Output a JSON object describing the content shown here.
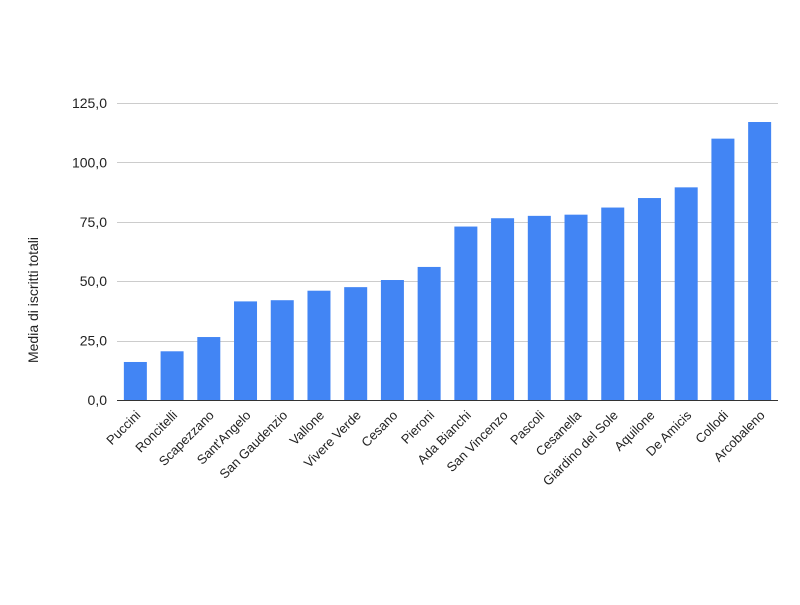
{
  "chart_data": {
    "type": "bar",
    "title": "",
    "xlabel": "",
    "ylabel": "Media di iscritti totali",
    "ylim": [
      0,
      125
    ],
    "yticks": [
      "0,0",
      "25,0",
      "50,0",
      "75,0",
      "100,0",
      "125,0"
    ],
    "ytick_values": [
      0,
      25,
      50,
      75,
      100,
      125
    ],
    "grid": true,
    "legend": "none",
    "bar_color": "#4285f4",
    "categories": [
      "Puccini",
      "Roncitelli",
      "Scapezzano",
      "Sant'Angelo",
      "San Gaudenzio",
      "Vallone",
      "Vivere Verde",
      "Cesano",
      "Pieroni",
      "Ada Bianchi",
      "San Vincenzo",
      "Pascoli",
      "Cesanella",
      "Giardino del Sole",
      "Aquilone",
      "De Amicis",
      "Collodi",
      "Arcobaleno"
    ],
    "values": [
      16,
      20.5,
      26.5,
      41.5,
      42,
      46,
      47.5,
      50.5,
      56,
      73,
      76.5,
      77.5,
      78,
      81,
      85,
      89.5,
      110,
      117
    ]
  }
}
